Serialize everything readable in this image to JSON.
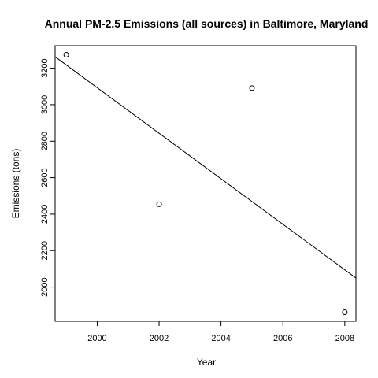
{
  "chart_data": {
    "type": "scatter",
    "title": "Annual PM-2.5 Emissions (all sources) in Baltimore, Maryland",
    "xlabel": "Year",
    "ylabel": "Emissions (tons)",
    "x": [
      1999,
      2002,
      2005,
      2008
    ],
    "y": [
      3274,
      2454,
      3091,
      1862
    ],
    "xlim": [
      1998.64,
      2008.36
    ],
    "ylim": [
      1812.5,
      3323.5
    ],
    "xticks": [
      2000,
      2002,
      2004,
      2006,
      2008
    ],
    "yticks": [
      2000,
      2200,
      2400,
      2600,
      2800,
      3000,
      3200
    ],
    "regression_line": {
      "intercept_at_1999": 3217.9,
      "slope_per_year": -124.8
    },
    "grid": false,
    "legend": "none"
  }
}
